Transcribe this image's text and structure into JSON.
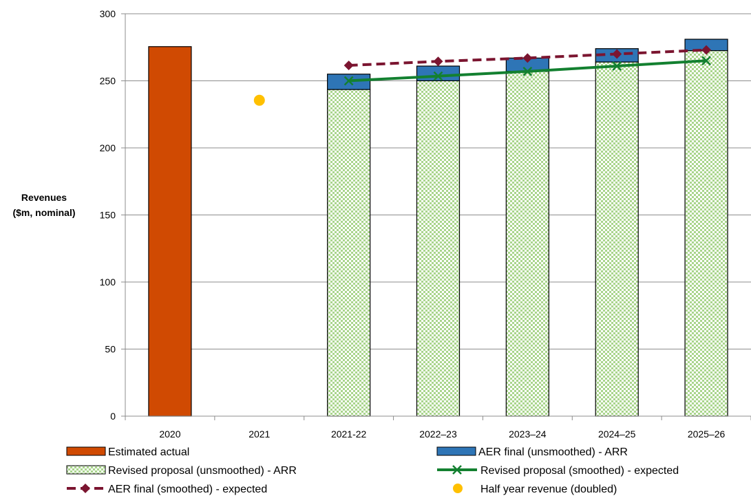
{
  "chart_data": {
    "type": "bar",
    "categories": [
      "2020",
      "2021",
      "2021-22",
      "2022–23",
      "2023–24",
      "2024–25",
      "2025–26"
    ],
    "ylabel_line1": "Revenues",
    "ylabel_line2": "($m, nominal)",
    "ylim": [
      0,
      300
    ],
    "yticks": [
      0,
      50,
      100,
      150,
      200,
      250,
      300
    ],
    "grid": true,
    "legend_position": "bottom",
    "series": [
      {
        "key": "estimated",
        "name": "Estimated actual",
        "kind": "bar",
        "color": "#D04A02",
        "values": [
          275.5,
          null,
          null,
          null,
          null,
          null,
          null
        ]
      },
      {
        "key": "revised_arr",
        "name": "Revised proposal (unsmoothed) - ARR",
        "kind": "bar-checker",
        "color": "#A9D58C",
        "values": [
          null,
          null,
          243.5,
          250,
          257,
          264,
          272.5
        ]
      },
      {
        "key": "aer_arr",
        "name": "AER final (unsmoothed) - ARR",
        "kind": "bar-stack",
        "color": "#2E75B6",
        "values": [
          null,
          null,
          255,
          261,
          267,
          274,
          281
        ]
      },
      {
        "key": "revised_expected",
        "name": "Revised proposal (smoothed) - expected",
        "kind": "line-x",
        "color": "#138030",
        "values": [
          null,
          null,
          250,
          253.5,
          257,
          261,
          265
        ]
      },
      {
        "key": "aer_expected",
        "name": "AER final (smoothed) - expected",
        "kind": "line-diamond-dash",
        "color": "#7B1530",
        "values": [
          null,
          null,
          261.5,
          264.5,
          267,
          270,
          273
        ]
      },
      {
        "key": "half_year",
        "name": "Half year revenue (doubled)",
        "kind": "dot",
        "color": "#FFC000",
        "values": [
          null,
          235.5,
          null,
          null,
          null,
          null,
          null
        ]
      }
    ]
  }
}
